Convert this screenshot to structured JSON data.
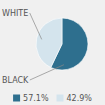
{
  "chart_data": {
    "type": "pie",
    "categories": [
      "BLACK",
      "WHITE"
    ],
    "values": [
      57.1,
      42.9
    ],
    "value_labels": [
      "57.1%",
      "42.9%"
    ],
    "colors": [
      "#2e6f8e",
      "#d4e4ed"
    ],
    "legend": "bottom"
  }
}
